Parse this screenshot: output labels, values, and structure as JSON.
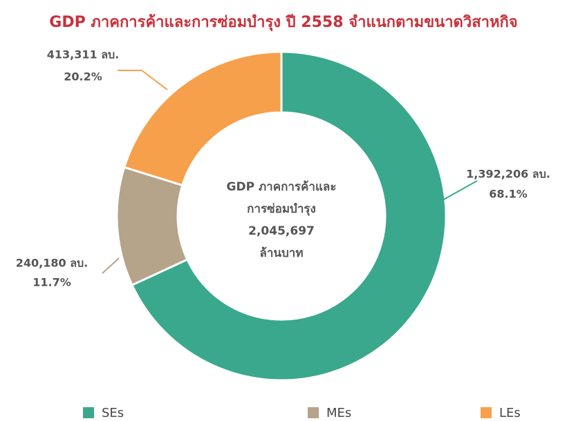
{
  "chart_data": {
    "type": "pie",
    "title": "GDP ภาคการค้าและการซ่อมบำรุง ปี 2558 จำแนกตามขนาดวิสาหกิจ",
    "categories": [
      "SEs",
      "MEs",
      "LEs"
    ],
    "values": [
      68.1,
      11.7,
      20.2
    ],
    "value_labels": [
      "68.1%",
      "11.7%",
      "20.2%"
    ],
    "amount_labels": [
      "1,392,206 ลบ.",
      "240,180 ลบ.",
      "413,311 ลบ."
    ],
    "colors": [
      "#3aa88c",
      "#b5a38a",
      "#f7a04b"
    ],
    "center_text": [
      "GDP ภาคการค้าและ",
      "การซ่อมบำรุง",
      "2,045,697",
      "ล้านบาท"
    ],
    "legend": "bottom"
  }
}
